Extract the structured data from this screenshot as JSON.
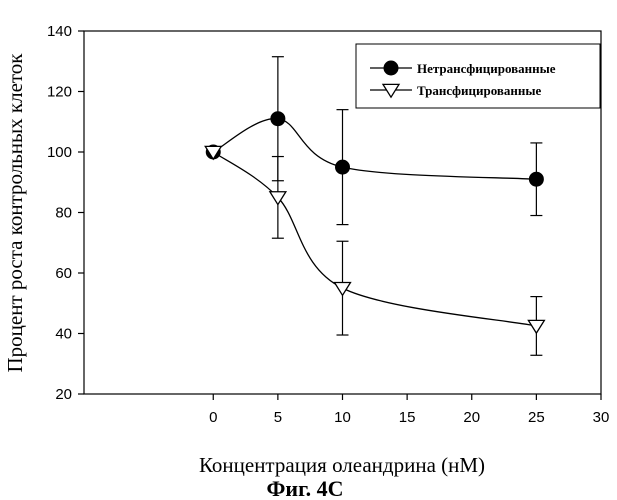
{
  "chart_data": {
    "type": "line",
    "xlabel": "Концентрация олеандрина (нМ)",
    "ylabel": "Процент роста контрольных клеток",
    "caption": "Фиг. 4С",
    "xlim": [
      -10,
      30
    ],
    "ylim": [
      20,
      140
    ],
    "xticks": [
      0,
      5,
      10,
      15,
      20,
      25,
      30
    ],
    "yticks": [
      20,
      40,
      60,
      80,
      100,
      120,
      140
    ],
    "grid": false,
    "legend_position": "top-right",
    "series": [
      {
        "name": "Нетрансфицированные",
        "marker": "filled-circle",
        "x": [
          0,
          5,
          10,
          25
        ],
        "y": [
          100,
          111,
          95,
          91
        ],
        "error": [
          0,
          20.5,
          19,
          12
        ]
      },
      {
        "name": "Трансфицированные",
        "marker": "open-triangle-down",
        "x": [
          0,
          5,
          10,
          25
        ],
        "y": [
          100,
          85,
          55,
          42.5
        ],
        "error": [
          0,
          13.5,
          15.5,
          9.7
        ]
      }
    ]
  }
}
